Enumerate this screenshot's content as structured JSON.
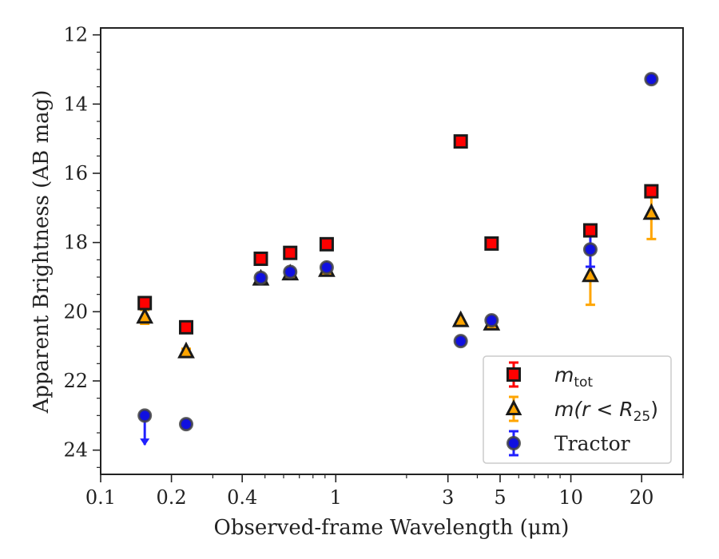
{
  "chart_data": {
    "type": "scatter",
    "title": "",
    "xlabel": "Observed-frame Wavelength (μm)",
    "ylabel": "Apparent Brightness (AB mag)",
    "xscale": "log",
    "xlim": [
      0.1,
      30
    ],
    "ylim": [
      24.7,
      11.8
    ],
    "y_inverted": true,
    "x_ticks": [
      0.1,
      0.2,
      0.4,
      1,
      3,
      5,
      10,
      20
    ],
    "x_tick_labels": [
      "0.1",
      "0.2",
      "0.4",
      "1",
      "3",
      "5",
      "10",
      "20"
    ],
    "y_ticks": [
      12,
      14,
      16,
      18,
      20,
      22,
      24
    ],
    "y_tick_labels": [
      "12",
      "14",
      "16",
      "18",
      "20",
      "22",
      "24"
    ],
    "grid": false,
    "legend_position": "lower-right",
    "legend": [
      {
        "label_main": "m",
        "label_sub": "tot",
        "label_after": "",
        "marker": "square"
      },
      {
        "label_main": "m(r < R",
        "label_sub": "25",
        "label_after": ")",
        "marker": "triangle"
      },
      {
        "label_main": "Tractor",
        "label_sub": "",
        "label_after": "",
        "marker": "circle"
      }
    ],
    "series": [
      {
        "marker": "square",
        "color": "#ff0000",
        "edge": "#1a1a1a",
        "errcolor": "#ff0000",
        "points": [
          {
            "x": 0.154,
            "y": 19.75,
            "err": 0.05
          },
          {
            "x": 0.231,
            "y": 20.45,
            "err": 0.05
          },
          {
            "x": 0.48,
            "y": 18.47,
            "err": 0.04
          },
          {
            "x": 0.64,
            "y": 18.3,
            "err": 0.04
          },
          {
            "x": 0.915,
            "y": 18.05,
            "err": 0.04
          },
          {
            "x": 3.4,
            "y": 15.08,
            "err": 0.03
          },
          {
            "x": 4.6,
            "y": 18.03,
            "err": 0.05
          },
          {
            "x": 12.1,
            "y": 17.65,
            "err": 0.05
          },
          {
            "x": 22.0,
            "y": 16.52,
            "err": 0.05
          }
        ]
      },
      {
        "marker": "triangle",
        "color": "#ffa500",
        "edge": "#1a1a1a",
        "errcolor": "#ffa500",
        "points": [
          {
            "x": 0.154,
            "y": 20.15,
            "err": 0.2
          },
          {
            "x": 0.231,
            "y": 21.15,
            "err": 0.08
          },
          {
            "x": 0.48,
            "y": 19.05,
            "err": 0.05
          },
          {
            "x": 0.64,
            "y": 18.9,
            "err": 0.05
          },
          {
            "x": 0.915,
            "y": 18.8,
            "err": 0.05
          },
          {
            "x": 3.4,
            "y": 20.25,
            "err": 0.05
          },
          {
            "x": 4.6,
            "y": 20.35,
            "err": 0.05
          },
          {
            "x": 12.1,
            "y": 18.95,
            "err": 0.85
          },
          {
            "x": 22.0,
            "y": 17.15,
            "err": 0.75
          }
        ]
      },
      {
        "marker": "circle",
        "color": "#1010e0",
        "edge": "#444444",
        "errcolor": "#2020ff",
        "points": [
          {
            "x": 0.154,
            "y": 23.0,
            "err": 0.0,
            "upper_limit": true
          },
          {
            "x": 0.231,
            "y": 23.25,
            "err": 0.05
          },
          {
            "x": 0.48,
            "y": 19.02,
            "err": 0.05
          },
          {
            "x": 0.64,
            "y": 18.85,
            "err": 0.05
          },
          {
            "x": 0.915,
            "y": 18.72,
            "err": 0.05
          },
          {
            "x": 3.4,
            "y": 20.85,
            "err": 0.05
          },
          {
            "x": 4.6,
            "y": 20.25,
            "err": 0.05
          },
          {
            "x": 12.1,
            "y": 18.2,
            "err": 0.5
          },
          {
            "x": 22.0,
            "y": 13.28,
            "err": 0.04
          }
        ]
      }
    ]
  }
}
